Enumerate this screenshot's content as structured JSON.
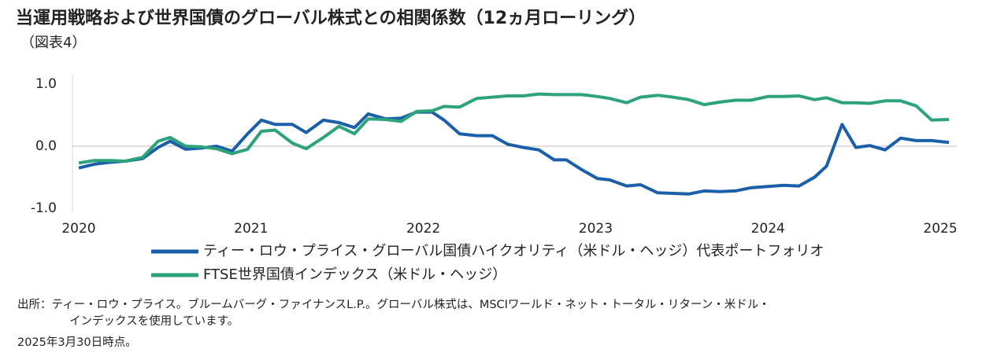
{
  "chart_data": {
    "type": "line",
    "title": "当運用戦略および世界国債のグローバル株式との相関係数（12ヵ月ローリング）",
    "subtitle": "（図表4）",
    "x": [
      2020.0,
      2020.09,
      2020.18,
      2020.27,
      2020.37,
      2020.46,
      2020.53,
      2020.62,
      2020.71,
      2020.8,
      2020.89,
      2020.98,
      2021.06,
      2021.14,
      2021.24,
      2021.32,
      2021.42,
      2021.51,
      2021.6,
      2021.68,
      2021.78,
      2021.87,
      2021.96,
      2022.05,
      2022.12,
      2022.21,
      2022.31,
      2022.4,
      2022.49,
      2022.58,
      2022.67,
      2022.76,
      2022.83,
      2022.92,
      2023.01,
      2023.08,
      2023.18,
      2023.26,
      2023.36,
      2023.45,
      2023.54,
      2023.63,
      2023.72,
      2023.81,
      2023.9,
      2024.0,
      2024.09,
      2024.18,
      2024.27,
      2024.34,
      2024.43,
      2024.51,
      2024.59,
      2024.68,
      2024.77,
      2024.86,
      2024.95,
      2025.05
    ],
    "series": [
      {
        "name": "ティー・ロウ・プライス・グローバル国債ハイクオリティ（米ドル・ヘッジ）代表ポートフォリオ",
        "color": "#1b5faa",
        "values": [
          -0.35,
          -0.29,
          -0.26,
          -0.24,
          -0.2,
          -0.02,
          0.08,
          -0.05,
          -0.03,
          0.0,
          -0.08,
          0.2,
          0.42,
          0.35,
          0.35,
          0.22,
          0.42,
          0.38,
          0.3,
          0.52,
          0.44,
          0.45,
          0.55,
          0.55,
          0.42,
          0.2,
          0.17,
          0.17,
          0.03,
          -0.02,
          -0.06,
          -0.22,
          -0.22,
          -0.38,
          -0.52,
          -0.54,
          -0.64,
          -0.62,
          -0.75,
          -0.76,
          -0.77,
          -0.72,
          -0.73,
          -0.72,
          -0.67,
          -0.65,
          -0.63,
          -0.64,
          -0.5,
          -0.32,
          0.35,
          -0.02,
          0.01,
          -0.06,
          0.13,
          0.09,
          0.09,
          0.06
        ]
      },
      {
        "name": "FTSE世界国債インデックス（米ドル・ヘッジ）",
        "color": "#2ca37b",
        "values": [
          -0.27,
          -0.23,
          -0.23,
          -0.24,
          -0.18,
          0.08,
          0.14,
          0.0,
          -0.01,
          -0.04,
          -0.12,
          -0.05,
          0.24,
          0.26,
          0.05,
          -0.04,
          0.14,
          0.32,
          0.2,
          0.44,
          0.43,
          0.4,
          0.56,
          0.57,
          0.64,
          0.63,
          0.77,
          0.79,
          0.81,
          0.81,
          0.84,
          0.83,
          0.83,
          0.83,
          0.8,
          0.77,
          0.7,
          0.79,
          0.82,
          0.79,
          0.75,
          0.67,
          0.71,
          0.74,
          0.74,
          0.8,
          0.8,
          0.81,
          0.75,
          0.78,
          0.7,
          0.7,
          0.69,
          0.73,
          0.73,
          0.65,
          0.42,
          0.43
        ]
      }
    ],
    "xlim": [
      2020,
      2025.05
    ],
    "xticks": [
      2020,
      2021,
      2022,
      2023,
      2024,
      2025
    ],
    "ylim": [
      -1,
      1
    ],
    "yticks": [
      {
        "value": 1,
        "label": "1.0"
      },
      {
        "value": 0,
        "label": "0.0"
      },
      {
        "value": -1,
        "label": "-1.0"
      }
    ],
    "grid": false,
    "notes": [
      "出所：ティー・ロウ・プライス。ブルームバーグ・ファイナンスL.P.。グローバル株式は、MSCIワールド・ネット・トータル・リターン・米ドル・",
      "インデックスを使用しています。",
      "2025年3月30日時点。"
    ]
  }
}
